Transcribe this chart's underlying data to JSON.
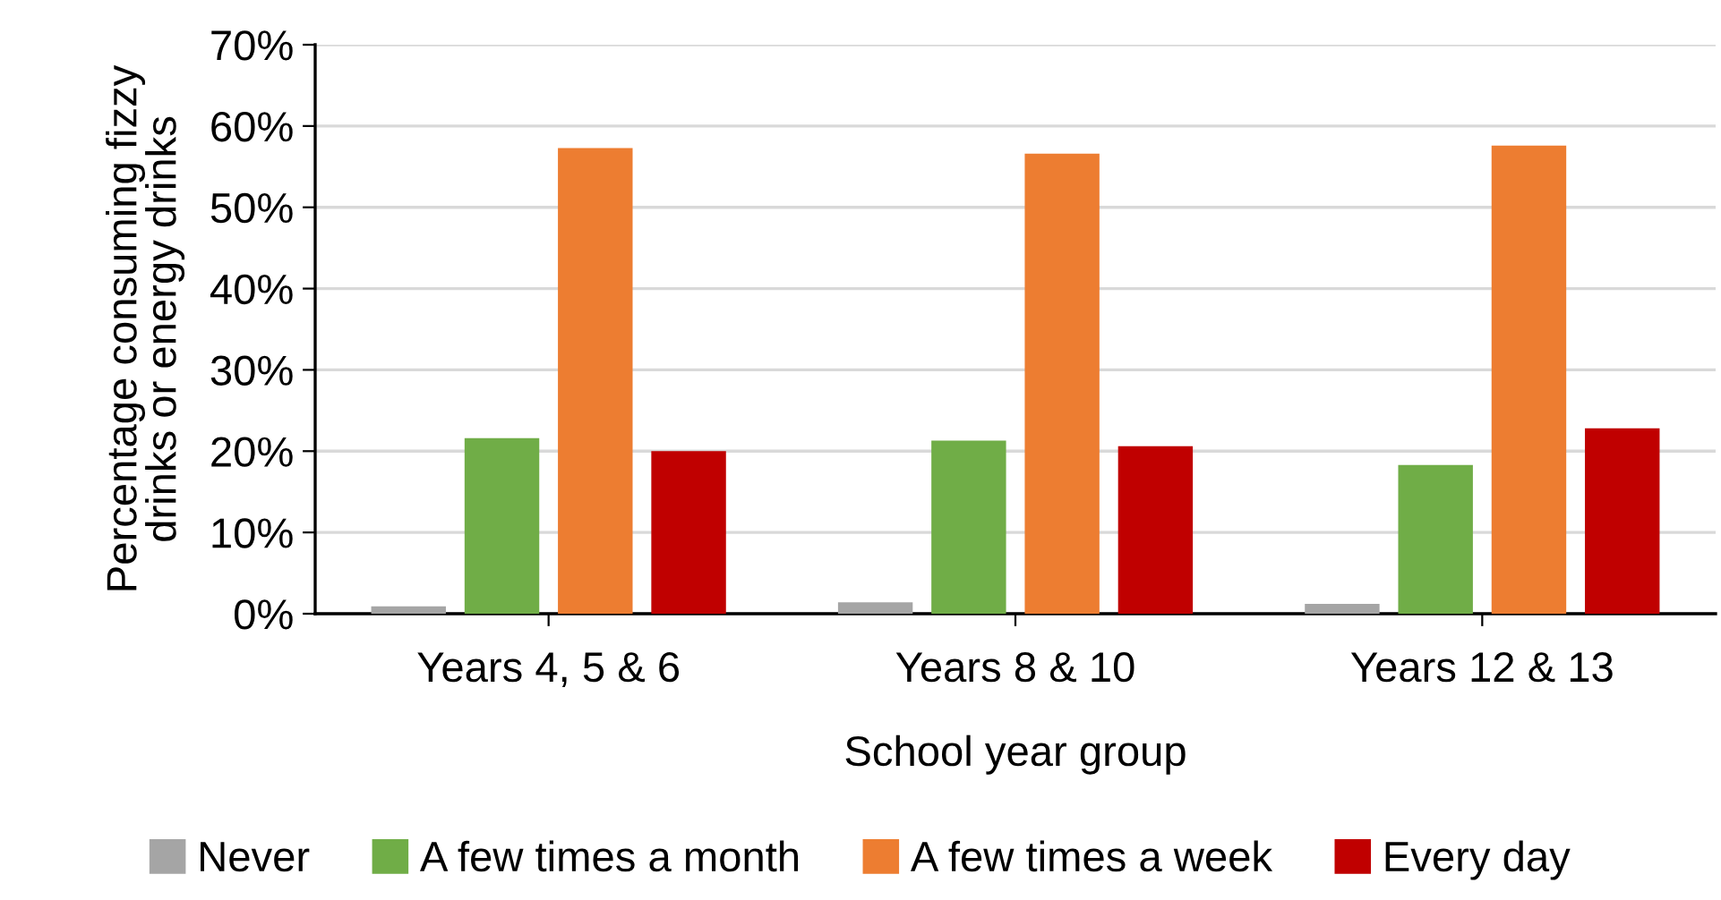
{
  "chart_data": {
    "type": "bar",
    "xlabel": "School year group",
    "ylabel": "Percentage consuming fizzy\ndrinks or energy drinks",
    "categories": [
      "Years 4, 5 & 6",
      "Years 8 & 10",
      "Years 12 & 13"
    ],
    "series": [
      {
        "name": "Never",
        "color": "#a5a5a5",
        "values": [
          0.9,
          1.4,
          1.2
        ]
      },
      {
        "name": "A few times a month",
        "color": "#70ad47",
        "values": [
          21.6,
          21.3,
          18.3
        ]
      },
      {
        "name": "A few times a week",
        "color": "#ed7d31",
        "values": [
          57.3,
          56.6,
          57.6
        ]
      },
      {
        "name": "Every day",
        "color": "#c00000",
        "values": [
          20.0,
          20.6,
          22.8
        ]
      }
    ],
    "ylim": [
      0,
      70
    ],
    "yticks": [
      {
        "value": 0,
        "label": "0%"
      },
      {
        "value": 10,
        "label": "10%"
      },
      {
        "value": 20,
        "label": "20%"
      },
      {
        "value": 30,
        "label": "30%"
      },
      {
        "value": 40,
        "label": "40%"
      },
      {
        "value": 50,
        "label": "50%"
      },
      {
        "value": 60,
        "label": "60%"
      },
      {
        "value": 70,
        "label": "70%"
      }
    ],
    "grid": "y",
    "legend": "bottom"
  }
}
